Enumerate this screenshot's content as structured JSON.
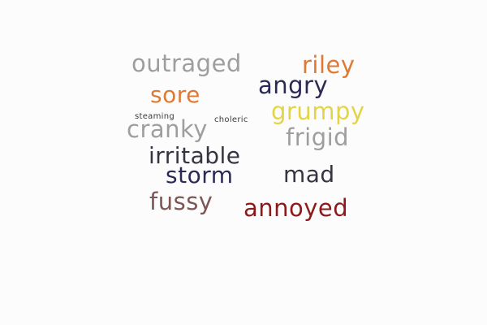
{
  "words": {
    "outraged": {
      "text": "outraged",
      "color": "#9e9e9e"
    },
    "riley": {
      "text": "riley",
      "color": "#e07a32"
    },
    "sore": {
      "text": "sore",
      "color": "#e07a32"
    },
    "angry": {
      "text": "angry",
      "color": "#2b2a52"
    },
    "grumpy": {
      "text": "grumpy",
      "color": "#e3d447"
    },
    "steaming": {
      "text": "steaming",
      "color": "#3a3a3a"
    },
    "choleric": {
      "text": "choleric",
      "color": "#3a3a3a"
    },
    "cranky": {
      "text": "cranky",
      "color": "#9e9e9e"
    },
    "frigid": {
      "text": "frigid",
      "color": "#9e9e9e"
    },
    "irritable": {
      "text": "irritable",
      "color": "#363440"
    },
    "storm": {
      "text": "storm",
      "color": "#2b2a52"
    },
    "mad": {
      "text": "mad",
      "color": "#363440"
    },
    "fussy": {
      "text": "fussy",
      "color": "#7d5656"
    },
    "annoyed": {
      "text": "annoyed",
      "color": "#8c1a1a"
    }
  }
}
